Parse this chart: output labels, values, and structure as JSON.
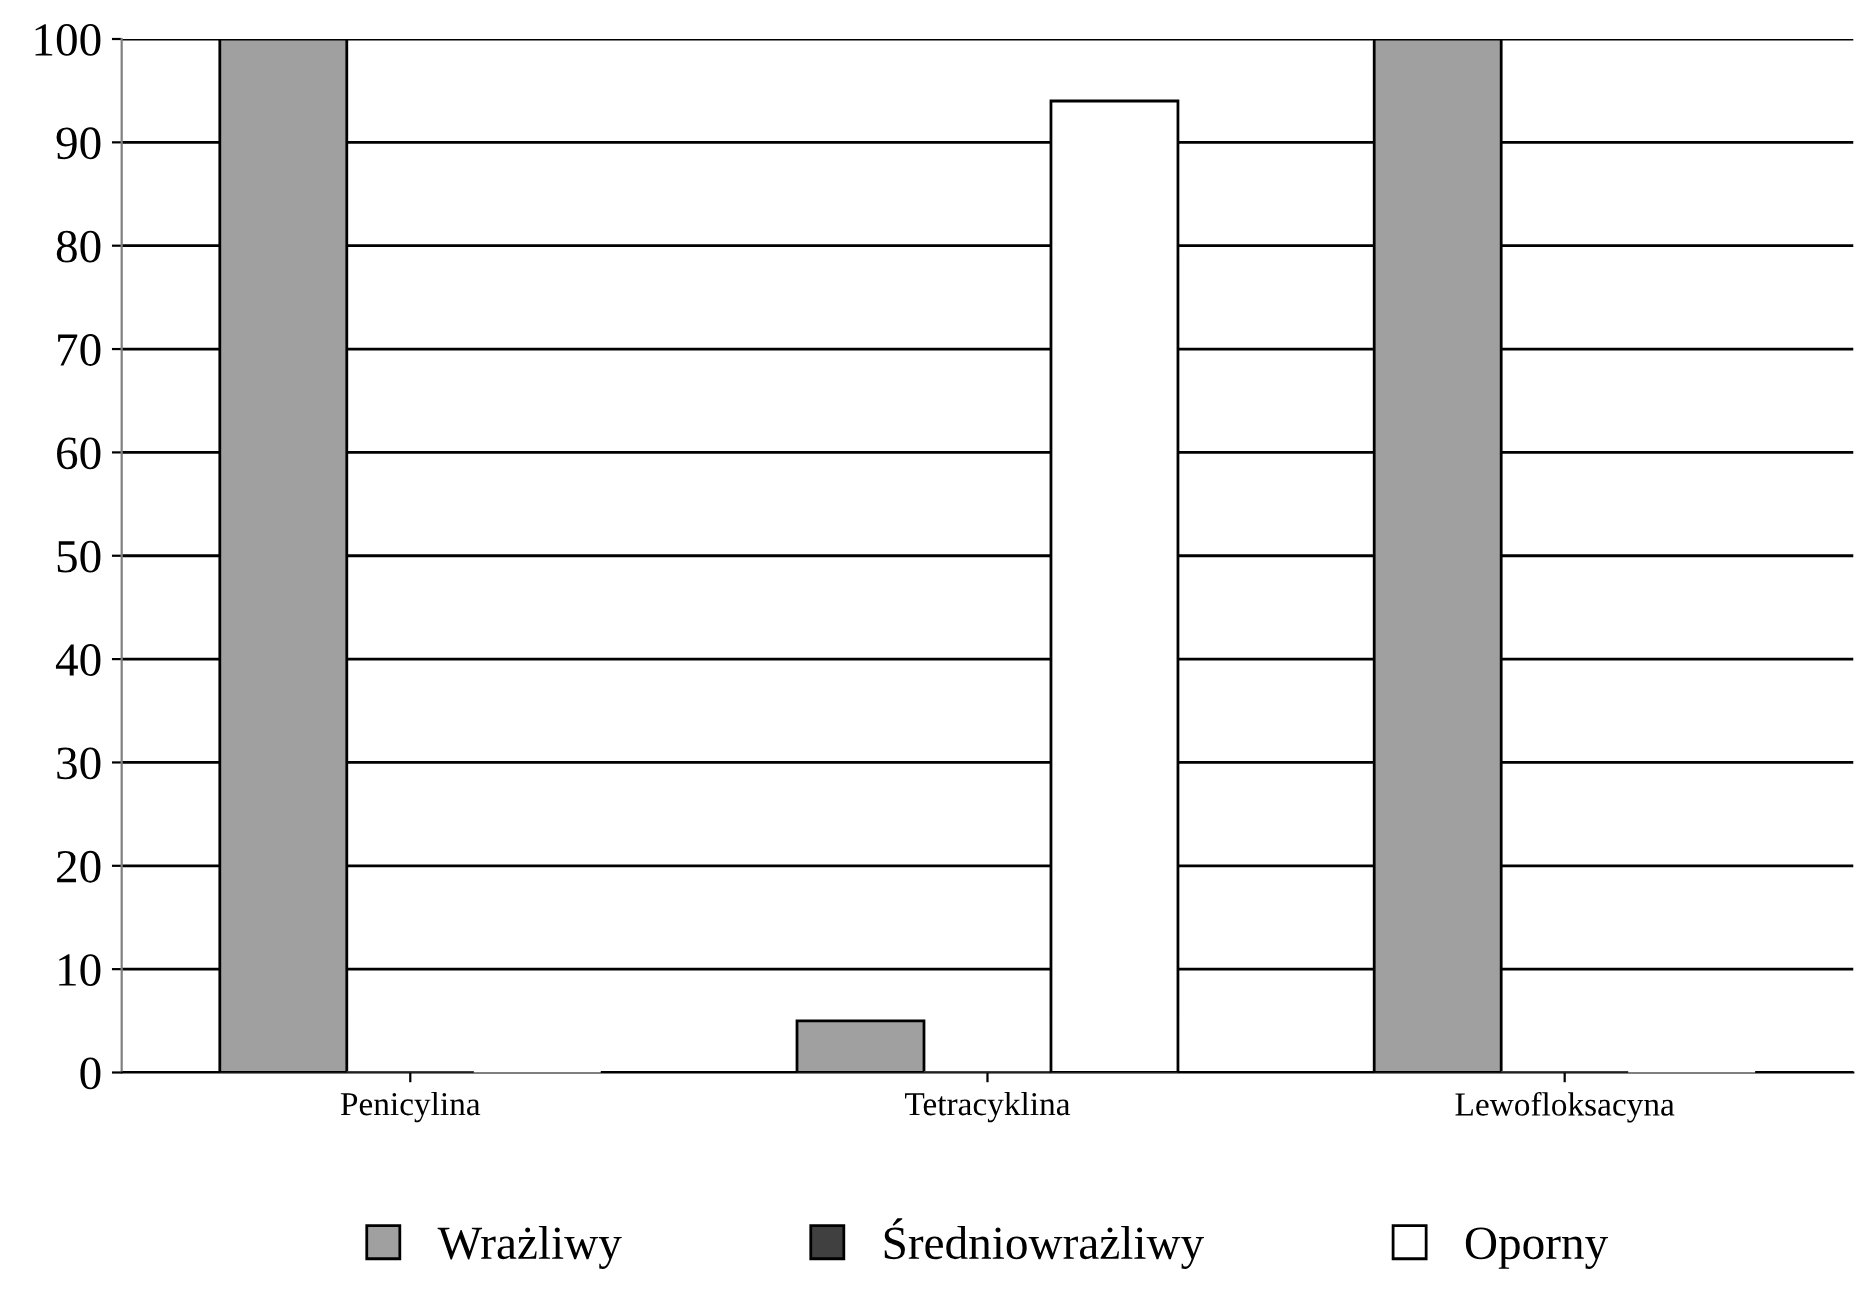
{
  "chart_data": {
    "type": "bar",
    "categories": [
      "Penicylina",
      "Tetracyklina",
      "Lewofloksacyna"
    ],
    "series": [
      {
        "name": "Wrażliwy",
        "color": "#a0a0a0",
        "values": [
          100,
          5,
          100
        ]
      },
      {
        "name": "Średniowrażliwy",
        "color": "#404040",
        "values": [
          0,
          0,
          0
        ]
      },
      {
        "name": "Oporny",
        "color": "#ffffff",
        "values": [
          0,
          94,
          0
        ]
      }
    ],
    "ylim": [
      0,
      100
    ],
    "yticks": [
      0,
      10,
      20,
      30,
      40,
      50,
      60,
      70,
      80,
      90,
      100
    ],
    "grid": "y",
    "legend": "bottom"
  }
}
